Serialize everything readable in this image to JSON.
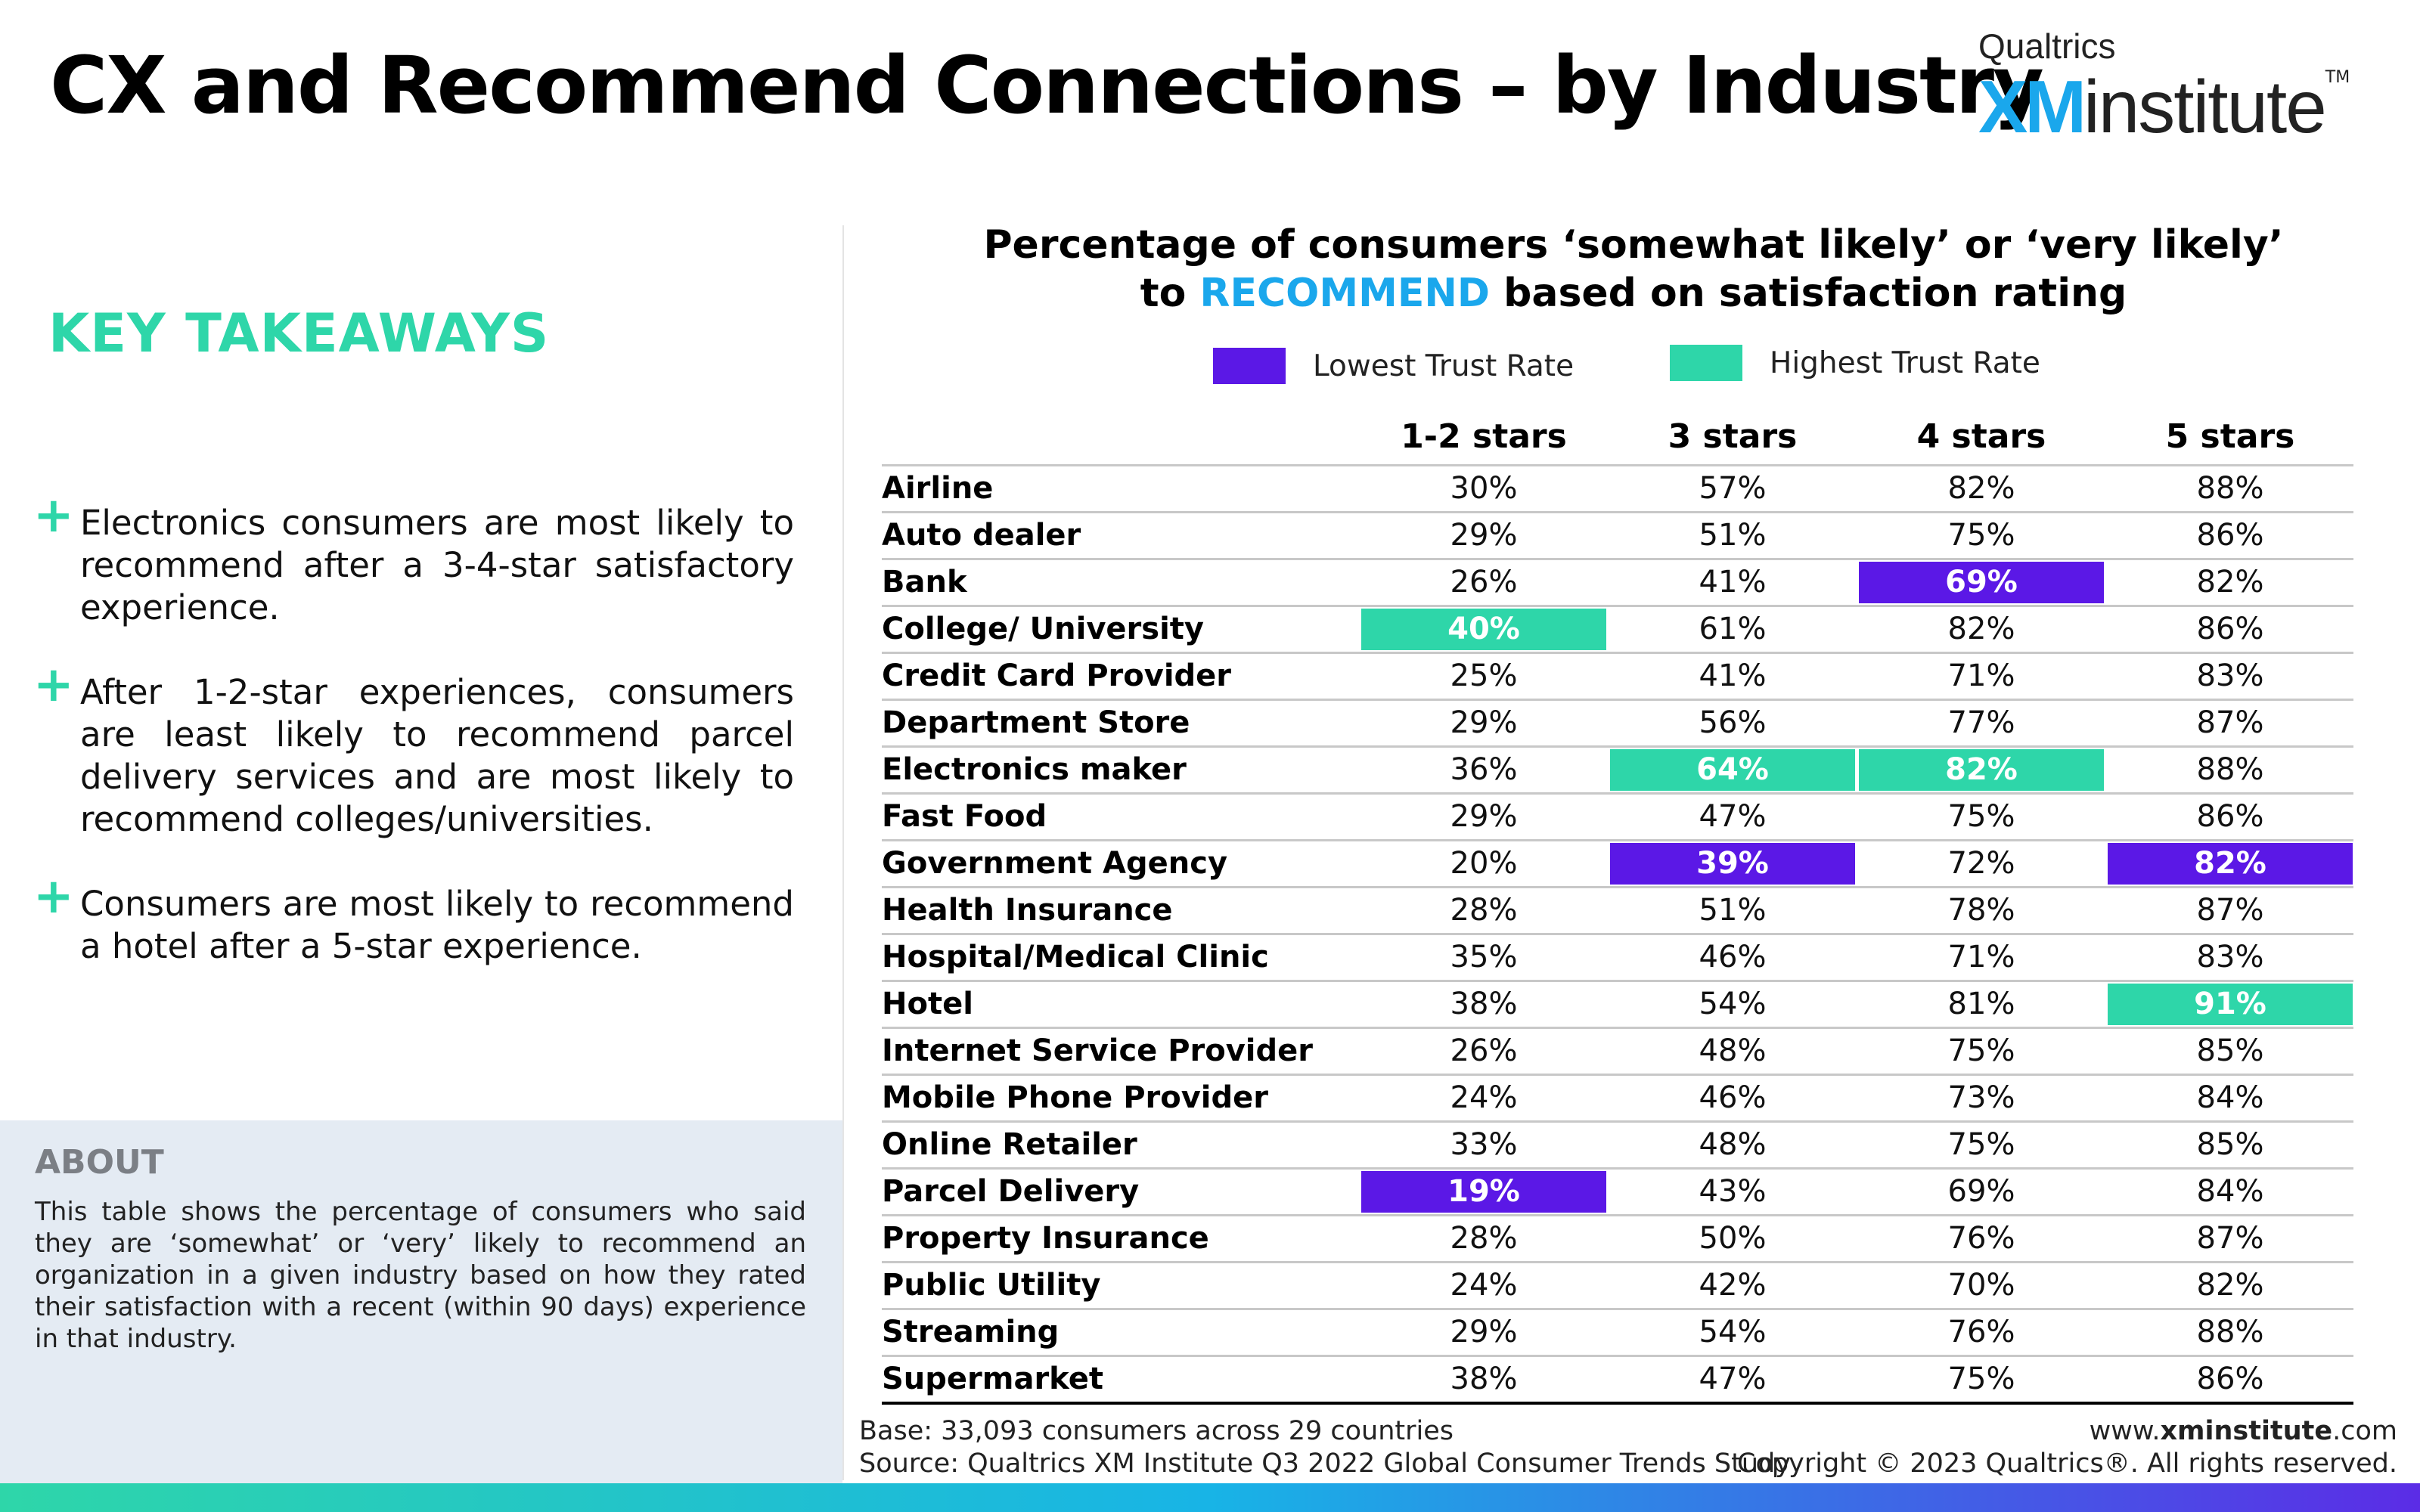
{
  "header": {
    "title": "CX and Recommend Connections – by Industry",
    "logo_top": "Qualtrics",
    "logo_xm": "XM",
    "logo_institute": "institute",
    "logo_tm": "TM"
  },
  "takeaways": {
    "title": "KEY TAKEAWAYS",
    "items": [
      "Electronics consumers are most likely to recommend after a 3-4-star satisfactory experience.",
      "After 1-2-star experiences, consumers are least likely to recommend parcel delivery services and are most likely to recommend colleges/universities.",
      "Consumers are most likely to recommend a hotel after a 5-star experience."
    ]
  },
  "about": {
    "title": "ABOUT",
    "text": "This table shows the percentage of consumers who said they are ‘somewhat’ or ‘very’ likely to recommend an organization in a given industry based on how they rated their satisfaction with a recent (within 90 days) experience in that industry."
  },
  "colors": {
    "low": "#5b18e6",
    "high": "#2ed6a9",
    "accent": "#1aa7ec"
  },
  "chart_data": {
    "type": "table",
    "title_line1": "Percentage of consumers ‘somewhat likely’ or ‘very likely’",
    "title_line2_pre": "to ",
    "title_line2_highlight": "RECOMMEND",
    "title_line2_post": " based on satisfaction rating",
    "legend": {
      "low": "Lowest Trust Rate",
      "high": "Highest Trust Rate"
    },
    "columns": [
      "1-2 stars",
      "3 stars",
      "4 stars",
      "5 stars"
    ],
    "rows": [
      {
        "label": "Airline",
        "values": [
          "30%",
          "57%",
          "82%",
          "88%"
        ]
      },
      {
        "label": "Auto dealer",
        "values": [
          "29%",
          "51%",
          "75%",
          "86%"
        ]
      },
      {
        "label": "Bank",
        "values": [
          "26%",
          "41%",
          "69%",
          "82%"
        ]
      },
      {
        "label": "College/ University",
        "values": [
          "40%",
          "61%",
          "82%",
          "86%"
        ]
      },
      {
        "label": "Credit Card Provider",
        "values": [
          "25%",
          "41%",
          "71%",
          "83%"
        ]
      },
      {
        "label": "Department Store",
        "values": [
          "29%",
          "56%",
          "77%",
          "87%"
        ]
      },
      {
        "label": "Electronics maker",
        "values": [
          "36%",
          "64%",
          "82%",
          "88%"
        ]
      },
      {
        "label": "Fast Food",
        "values": [
          "29%",
          "47%",
          "75%",
          "86%"
        ]
      },
      {
        "label": "Government Agency",
        "values": [
          "20%",
          "39%",
          "72%",
          "82%"
        ]
      },
      {
        "label": "Health Insurance",
        "values": [
          "28%",
          "51%",
          "78%",
          "87%"
        ]
      },
      {
        "label": "Hospital/Medical Clinic",
        "values": [
          "35%",
          "46%",
          "71%",
          "83%"
        ]
      },
      {
        "label": "Hotel",
        "values": [
          "38%",
          "54%",
          "81%",
          "91%"
        ]
      },
      {
        "label": "Internet Service Provider",
        "values": [
          "26%",
          "48%",
          "75%",
          "85%"
        ]
      },
      {
        "label": "Mobile Phone Provider",
        "values": [
          "24%",
          "46%",
          "73%",
          "84%"
        ]
      },
      {
        "label": "Online Retailer",
        "values": [
          "33%",
          "48%",
          "75%",
          "85%"
        ]
      },
      {
        "label": "Parcel Delivery",
        "values": [
          "19%",
          "43%",
          "69%",
          "84%"
        ]
      },
      {
        "label": "Property Insurance",
        "values": [
          "28%",
          "50%",
          "76%",
          "87%"
        ]
      },
      {
        "label": "Public Utility",
        "values": [
          "24%",
          "42%",
          "70%",
          "82%"
        ]
      },
      {
        "label": "Streaming",
        "values": [
          "29%",
          "54%",
          "76%",
          "88%"
        ]
      },
      {
        "label": "Supermarket",
        "values": [
          "38%",
          "47%",
          "75%",
          "86%"
        ]
      }
    ],
    "highlights": [
      {
        "row": "Bank",
        "column": "4 stars",
        "kind": "low"
      },
      {
        "row": "College/ University",
        "column": "1-2 stars",
        "kind": "high"
      },
      {
        "row": "Electronics maker",
        "column": "3 stars",
        "kind": "high"
      },
      {
        "row": "Electronics maker",
        "column": "4 stars",
        "kind": "high"
      },
      {
        "row": "Government Agency",
        "column": "3 stars",
        "kind": "low"
      },
      {
        "row": "Government Agency",
        "column": "5 stars",
        "kind": "low"
      },
      {
        "row": "Hotel",
        "column": "5 stars",
        "kind": "high"
      },
      {
        "row": "Parcel Delivery",
        "column": "1-2 stars",
        "kind": "low"
      }
    ]
  },
  "footer": {
    "base": "Base: 33,093 consumers across 29 countries",
    "source": "Source: Qualtrics XM Institute Q3 2022 Global Consumer Trends Study",
    "url_pre": "www.",
    "url_bold": "xminstitute",
    "url_post": ".com",
    "copyright": "Copyright © 2023 Qualtrics®. All rights reserved."
  }
}
